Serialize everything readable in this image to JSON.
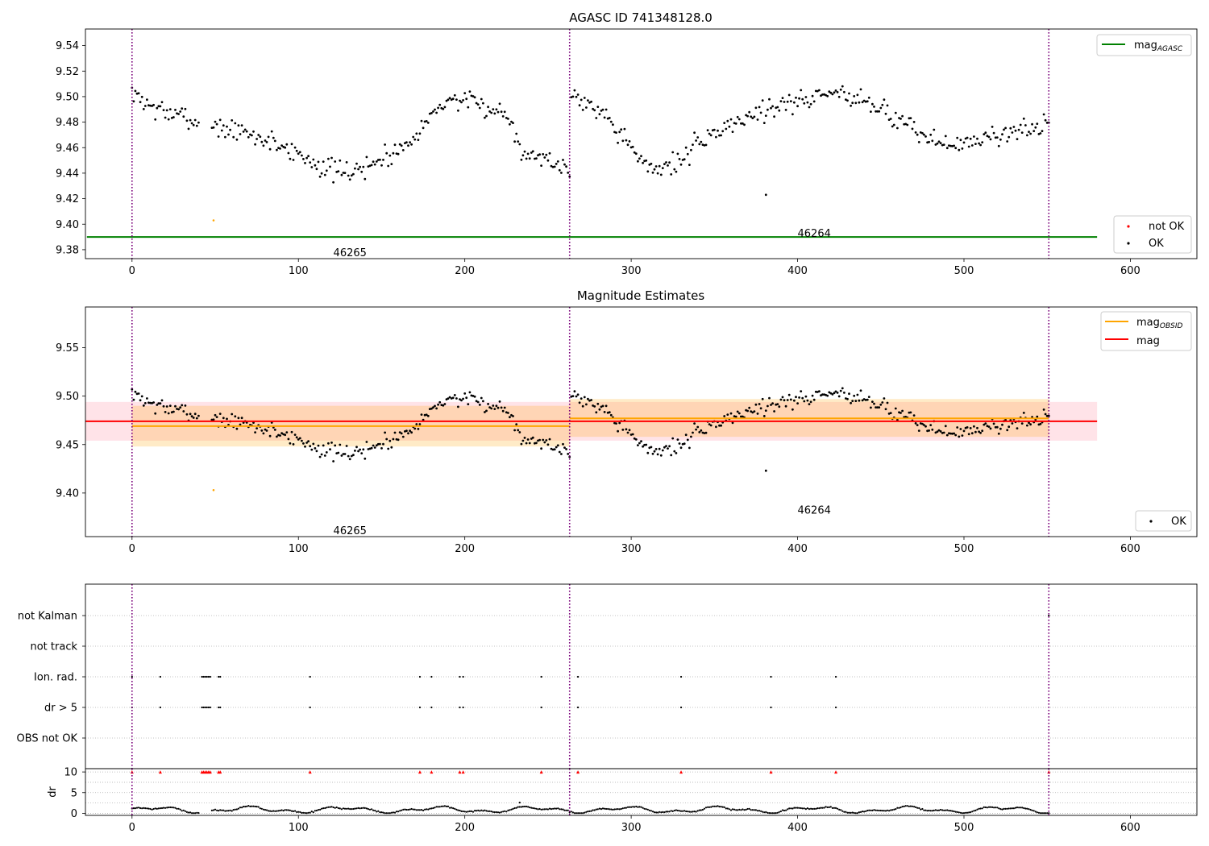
{
  "chart_data": [
    {
      "type": "scatter",
      "title": "AGASC ID 741348128.0",
      "xlim": [
        -28,
        640
      ],
      "ylim": [
        9.373,
        9.553
      ],
      "xticks": [
        "0",
        "100",
        "200",
        "300",
        "400",
        "500",
        "600"
      ],
      "yticks": [
        "9.38",
        "9.40",
        "9.42",
        "9.44",
        "9.46",
        "9.48",
        "9.50",
        "9.52",
        "9.54"
      ],
      "vlines": [
        0,
        263,
        551
      ],
      "obsid_labels": [
        {
          "text": "46265",
          "x": 131,
          "y": 9.378
        },
        {
          "text": "46264",
          "x": 410,
          "y": 9.39
        }
      ],
      "mag_agasc": {
        "value": 9.39,
        "x_range": [
          0,
          580
        ]
      },
      "not_ok_point": {
        "x": 49,
        "y": 9.403
      },
      "legend_lines": [
        {
          "label": "mag",
          "sub": "AGASC",
          "color": "#008000"
        }
      ],
      "legend_points": [
        {
          "label": "not OK",
          "color": "#ff0000"
        },
        {
          "label": "OK",
          "color": "#000000"
        }
      ]
    },
    {
      "type": "scatter",
      "title": "Magnitude Estimates",
      "xlim": [
        -28,
        640
      ],
      "ylim": [
        9.355,
        9.592
      ],
      "xticks": [
        "0",
        "100",
        "200",
        "300",
        "400",
        "500",
        "600"
      ],
      "yticks": [
        "9.40",
        "9.45",
        "9.50",
        "9.55"
      ],
      "vlines": [
        0,
        263,
        551
      ],
      "obsid_labels": [
        {
          "text": "46265",
          "x": 131,
          "y": 9.36
        },
        {
          "text": "46264",
          "x": 410,
          "y": 9.383
        }
      ],
      "mag": {
        "value": 9.474,
        "band": [
          9.454,
          9.494
        ],
        "x_range": [
          -28,
          580
        ]
      },
      "mag_obsid": [
        {
          "value": 9.469,
          "band": [
            9.448,
            9.49
          ],
          "x_range": [
            0,
            263
          ]
        },
        {
          "value": 9.477,
          "band": [
            9.458,
            9.497
          ],
          "x_range": [
            263,
            551
          ]
        }
      ],
      "legend_lines": [
        {
          "label": "mag",
          "sub": "OBSID",
          "color": "#ffa500"
        },
        {
          "label": "mag",
          "sub": "",
          "color": "#ff0000"
        }
      ],
      "legend_points": [
        {
          "label": "OK",
          "color": "#000000"
        }
      ]
    },
    {
      "type": "scatter",
      "xlim": [
        -28,
        640
      ],
      "ylabel": "dr",
      "flag_categories": [
        "not Kalman",
        "not track",
        "Ion. rad.",
        "dr > 5",
        "OBS not OK"
      ],
      "flags": {
        "not Kalman": [
          551
        ],
        "not track": [],
        "Ion. rad.": [
          0,
          17,
          42,
          43,
          44,
          45,
          46,
          47,
          52,
          53,
          107,
          173,
          180,
          197,
          199,
          246,
          268,
          330,
          384,
          423
        ],
        "dr > 5": [
          0,
          17,
          42,
          43,
          44,
          45,
          46,
          47,
          52,
          53,
          107,
          173,
          180,
          197,
          199,
          246,
          268,
          330,
          384,
          423
        ],
        "OBS not OK": []
      },
      "dr_ylim": [
        -0.5,
        10.8
      ],
      "dr_yticks": [
        "0",
        "5",
        "10"
      ],
      "dr_clipped": [
        0,
        17,
        42,
        43,
        44,
        45,
        46,
        47,
        52,
        53,
        107,
        173,
        180,
        197,
        199,
        246,
        268,
        330,
        384,
        423,
        551
      ],
      "dr_outlier": {
        "x": 233,
        "y": 2.6
      },
      "xticks": [
        "0",
        "100",
        "200",
        "300",
        "400",
        "500",
        "600"
      ]
    }
  ],
  "series_meta": {
    "n_points": 552,
    "seed": 7
  }
}
